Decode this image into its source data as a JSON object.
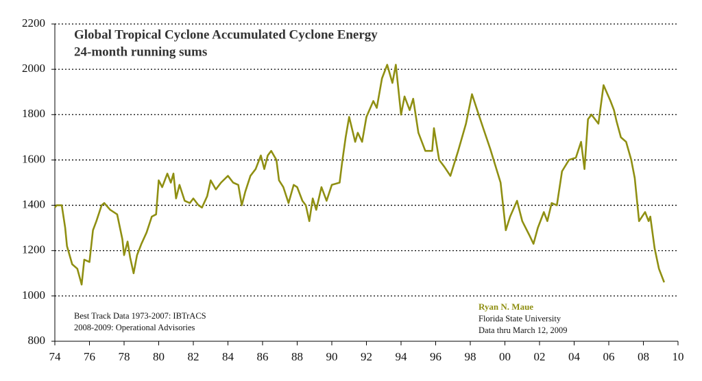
{
  "chart_data": {
    "type": "line",
    "title": "Global Tropical Cyclone Accumulated Cyclone Energy",
    "subtitle": "24-month running sums",
    "annotations": [
      "Best Track Data 1973-2007:  IBTrACS",
      "2008-2009: Operational Advisories",
      "Ryan N. Maue",
      "Florida State University",
      "Data thru March 12, 2009"
    ],
    "x": [
      1974.0,
      1974.1,
      1974.4,
      1974.6,
      1974.7,
      1975.0,
      1975.3,
      1975.55,
      1975.7,
      1976.0,
      1976.2,
      1976.4,
      1976.7,
      1976.85,
      1977.2,
      1977.6,
      1977.9,
      1978.0,
      1978.2,
      1978.35,
      1978.55,
      1978.75,
      1979.0,
      1979.3,
      1979.6,
      1979.85,
      1980.0,
      1980.2,
      1980.5,
      1980.7,
      1980.85,
      1981.0,
      1981.2,
      1981.5,
      1981.8,
      1982.0,
      1982.3,
      1982.5,
      1982.8,
      1983.0,
      1983.3,
      1983.6,
      1984.0,
      1984.3,
      1984.6,
      1984.8,
      1985.0,
      1985.3,
      1985.6,
      1985.9,
      1986.1,
      1986.3,
      1986.5,
      1986.8,
      1986.95,
      1987.2,
      1987.5,
      1987.8,
      1988.0,
      1988.3,
      1988.5,
      1988.7,
      1988.9,
      1989.1,
      1989.4,
      1989.7,
      1990.0,
      1990.45,
      1990.6,
      1990.8,
      1991.0,
      1991.35,
      1991.5,
      1991.75,
      1992.0,
      1992.4,
      1992.6,
      1992.9,
      1993.2,
      1993.5,
      1993.7,
      1994.0,
      1994.2,
      1994.5,
      1994.7,
      1995.0,
      1995.4,
      1995.8,
      1995.9,
      1996.2,
      1996.5,
      1996.85,
      1997.3,
      1997.75,
      1998.1,
      1998.4,
      1998.75,
      1999.15,
      1999.75,
      2000.05,
      2000.3,
      2000.7,
      2001.0,
      2001.4,
      2001.65,
      2001.9,
      2002.25,
      2002.45,
      2002.7,
      2003.0,
      2003.3,
      2003.7,
      2004.1,
      2004.4,
      2004.6,
      2004.8,
      2005.0,
      2005.4,
      2005.7,
      2006.1,
      2006.3,
      2006.45,
      2006.7,
      2007.0,
      2007.3,
      2007.5,
      2007.75,
      2008.1,
      2008.3,
      2008.4,
      2008.65,
      2008.9,
      2009.2
    ],
    "series": [
      {
        "color": "#8f8f12",
        "values": [
          1390,
          1400,
          1400,
          1300,
          1220,
          1140,
          1120,
          1050,
          1160,
          1150,
          1290,
          1330,
          1400,
          1410,
          1380,
          1360,
          1250,
          1180,
          1240,
          1170,
          1100,
          1180,
          1230,
          1280,
          1350,
          1360,
          1510,
          1480,
          1540,
          1500,
          1540,
          1430,
          1490,
          1420,
          1410,
          1430,
          1400,
          1390,
          1440,
          1510,
          1470,
          1500,
          1530,
          1500,
          1490,
          1400,
          1460,
          1530,
          1560,
          1620,
          1560,
          1620,
          1640,
          1600,
          1510,
          1480,
          1410,
          1490,
          1480,
          1420,
          1400,
          1330,
          1430,
          1380,
          1480,
          1420,
          1490,
          1500,
          1590,
          1700,
          1790,
          1680,
          1720,
          1680,
          1790,
          1860,
          1830,
          1960,
          2020,
          1940,
          2020,
          1800,
          1880,
          1820,
          1870,
          1720,
          1640,
          1640,
          1740,
          1600,
          1570,
          1530,
          1640,
          1760,
          1890,
          1820,
          1740,
          1650,
          1500,
          1290,
          1350,
          1420,
          1330,
          1270,
          1230,
          1300,
          1370,
          1330,
          1410,
          1400,
          1550,
          1600,
          1610,
          1680,
          1560,
          1780,
          1800,
          1760,
          1930,
          1860,
          1820,
          1770,
          1700,
          1680,
          1600,
          1520,
          1330,
          1370,
          1330,
          1350,
          1210,
          1120,
          1060
        ]
      }
    ],
    "xlim": [
      1974,
      2010
    ],
    "xticks": [
      {
        "value": 1974,
        "label": "74"
      },
      {
        "value": 1976,
        "label": "76"
      },
      {
        "value": 1978,
        "label": "78"
      },
      {
        "value": 1980,
        "label": "80"
      },
      {
        "value": 1982,
        "label": "82"
      },
      {
        "value": 1984,
        "label": "84"
      },
      {
        "value": 1986,
        "label": "86"
      },
      {
        "value": 1988,
        "label": "88"
      },
      {
        "value": 1990,
        "label": "90"
      },
      {
        "value": 1992,
        "label": "92"
      },
      {
        "value": 1994,
        "label": "94"
      },
      {
        "value": 1996,
        "label": "96"
      },
      {
        "value": 1998,
        "label": "98"
      },
      {
        "value": 2000,
        "label": "00"
      },
      {
        "value": 2002,
        "label": "02"
      },
      {
        "value": 2004,
        "label": "04"
      },
      {
        "value": 2006,
        "label": "06"
      },
      {
        "value": 2008,
        "label": "08"
      },
      {
        "value": 2010,
        "label": "10"
      }
    ],
    "ylim": [
      800,
      2200
    ],
    "yticks": [
      800,
      1000,
      1200,
      1400,
      1600,
      1800,
      2000,
      2200
    ],
    "grid": true
  }
}
